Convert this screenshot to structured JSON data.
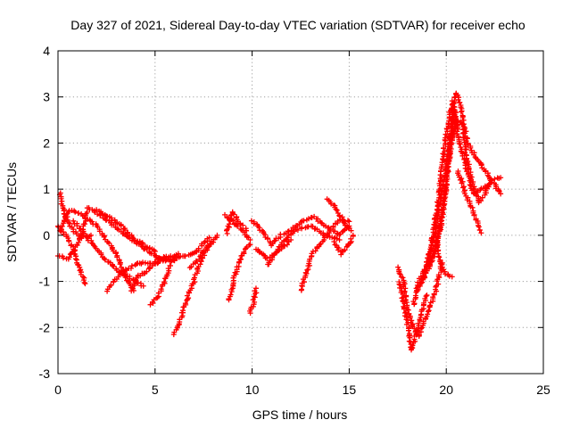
{
  "chart_data": {
    "type": "scatter",
    "title": "Day 327 of 2021, Sidereal Day-to-day VTEC variation (SDTVAR) for receiver echo",
    "xlabel": "GPS time / hours",
    "ylabel": "SDTVAR / TECUs",
    "xlim": [
      0,
      25
    ],
    "ylim": [
      -3,
      4
    ],
    "xticks": [
      "0",
      "5",
      "10",
      "15",
      "20",
      "25"
    ],
    "yticks": [
      "-3",
      "-2",
      "-1",
      "0",
      "1",
      "2",
      "3",
      "4"
    ],
    "grid": true,
    "marker": "plus",
    "marker_color": "#ff0000",
    "series_tracks": [
      {
        "name": "track-1",
        "points": [
          [
            0.0,
            0.2
          ],
          [
            0.4,
            0.0
          ],
          [
            0.8,
            -0.3
          ],
          [
            1.1,
            -0.7
          ],
          [
            1.4,
            -1.05
          ]
        ]
      },
      {
        "name": "track-2",
        "points": [
          [
            0.0,
            -0.45
          ],
          [
            0.5,
            -0.5
          ],
          [
            0.9,
            -0.3
          ],
          [
            1.3,
            0.1
          ],
          [
            1.5,
            0.5
          ]
        ]
      },
      {
        "name": "track-3",
        "points": [
          [
            0.1,
            0.9
          ],
          [
            0.4,
            0.4
          ],
          [
            0.8,
            0.1
          ],
          [
            1.2,
            -0.05
          ],
          [
            1.7,
            0.0
          ]
        ]
      },
      {
        "name": "track-4",
        "points": [
          [
            0.1,
            0.1
          ],
          [
            0.6,
            0.55
          ],
          [
            1.2,
            0.45
          ],
          [
            2.0,
            0.2
          ],
          [
            3.0,
            -0.4
          ],
          [
            3.6,
            -1.0
          ],
          [
            3.9,
            -1.2
          ]
        ]
      },
      {
        "name": "track-5",
        "points": [
          [
            1.5,
            0.6
          ],
          [
            2.3,
            0.4
          ],
          [
            3.5,
            0.0
          ],
          [
            4.5,
            -0.3
          ],
          [
            5.2,
            -0.5
          ],
          [
            6.0,
            -0.55
          ]
        ]
      },
      {
        "name": "track-6",
        "points": [
          [
            2.0,
            0.55
          ],
          [
            3.0,
            0.3
          ],
          [
            4.0,
            -0.1
          ],
          [
            5.0,
            -0.35
          ]
        ]
      },
      {
        "name": "track-7",
        "points": [
          [
            0.8,
            0.3
          ],
          [
            1.6,
            -0.1
          ],
          [
            2.4,
            -0.5
          ],
          [
            3.2,
            -0.8
          ],
          [
            4.0,
            -1.0
          ],
          [
            4.4,
            -1.1
          ]
        ]
      },
      {
        "name": "track-8",
        "points": [
          [
            2.5,
            -1.2
          ],
          [
            3.3,
            -0.8
          ],
          [
            4.2,
            -0.6
          ],
          [
            5.0,
            -0.6
          ],
          [
            6.0,
            -0.5
          ],
          [
            7.0,
            -0.4
          ],
          [
            7.8,
            -0.05
          ]
        ]
      },
      {
        "name": "track-9",
        "points": [
          [
            3.8,
            -1.2
          ],
          [
            4.1,
            -0.9
          ],
          [
            4.5,
            -0.8
          ],
          [
            5.2,
            -0.5
          ],
          [
            6.0,
            -0.45
          ]
        ]
      },
      {
        "name": "track-10",
        "points": [
          [
            4.8,
            -1.5
          ],
          [
            5.1,
            -1.35
          ],
          [
            5.5,
            -1.0
          ],
          [
            5.8,
            -0.6
          ],
          [
            6.2,
            -0.4
          ]
        ]
      },
      {
        "name": "track-11",
        "points": [
          [
            6.0,
            -2.15
          ],
          [
            6.4,
            -1.7
          ],
          [
            6.7,
            -1.3
          ],
          [
            7.0,
            -1.0
          ],
          [
            7.4,
            -0.5
          ],
          [
            7.8,
            -0.2
          ],
          [
            8.2,
            0.0
          ]
        ]
      },
      {
        "name": "track-12",
        "points": [
          [
            6.8,
            -0.7
          ],
          [
            7.2,
            -0.55
          ],
          [
            7.6,
            -0.3
          ],
          [
            8.0,
            -0.15
          ]
        ]
      },
      {
        "name": "track-13",
        "points": [
          [
            8.8,
            -1.4
          ],
          [
            9.1,
            -0.9
          ],
          [
            9.4,
            -0.5
          ],
          [
            9.7,
            -0.25
          ],
          [
            9.9,
            -0.2
          ]
        ]
      },
      {
        "name": "track-14",
        "points": [
          [
            8.6,
            0.45
          ],
          [
            9.0,
            0.3
          ],
          [
            9.5,
            0.1
          ],
          [
            9.9,
            -0.1
          ]
        ]
      },
      {
        "name": "track-15",
        "points": [
          [
            8.7,
            0.05
          ],
          [
            9.0,
            0.5
          ],
          [
            9.3,
            0.3
          ],
          [
            9.7,
            0.1
          ]
        ]
      },
      {
        "name": "track-16",
        "points": [
          [
            9.9,
            -1.7
          ],
          [
            10.1,
            -1.4
          ],
          [
            10.2,
            -1.15
          ]
        ]
      },
      {
        "name": "track-17",
        "points": [
          [
            10.0,
            0.3
          ],
          [
            10.5,
            0.1
          ],
          [
            11.0,
            -0.2
          ],
          [
            11.5,
            0.0
          ],
          [
            12.0,
            0.1
          ],
          [
            12.6,
            0.3
          ],
          [
            13.2,
            0.4
          ],
          [
            13.8,
            0.2
          ],
          [
            14.5,
            0.0
          ],
          [
            15.0,
            0.2
          ]
        ]
      },
      {
        "name": "track-18",
        "points": [
          [
            10.2,
            -0.3
          ],
          [
            10.8,
            -0.5
          ],
          [
            11.5,
            -0.3
          ],
          [
            12.0,
            -0.1
          ]
        ]
      },
      {
        "name": "track-19",
        "points": [
          [
            10.8,
            -0.65
          ],
          [
            11.5,
            -0.2
          ],
          [
            12.2,
            0.1
          ],
          [
            13.0,
            0.2
          ],
          [
            13.8,
            0.0
          ],
          [
            14.5,
            -0.1
          ]
        ]
      },
      {
        "name": "track-20",
        "points": [
          [
            12.5,
            -1.2
          ],
          [
            12.8,
            -0.8
          ],
          [
            13.1,
            -0.4
          ],
          [
            13.5,
            -0.2
          ],
          [
            14.0,
            0.1
          ],
          [
            14.5,
            0.35
          ],
          [
            15.0,
            0.3
          ]
        ]
      },
      {
        "name": "track-21",
        "points": [
          [
            13.9,
            0.8
          ],
          [
            14.3,
            0.6
          ],
          [
            14.7,
            0.3
          ],
          [
            15.1,
            0.1
          ]
        ]
      },
      {
        "name": "track-22",
        "points": [
          [
            14.2,
            -0.15
          ],
          [
            14.6,
            -0.4
          ],
          [
            15.0,
            -0.2
          ],
          [
            15.2,
            0.0
          ]
        ]
      },
      {
        "name": "track-23",
        "points": [
          [
            17.5,
            -0.7
          ],
          [
            17.8,
            -1.0
          ],
          [
            18.0,
            -1.6
          ],
          [
            18.3,
            -2.0
          ],
          [
            18.6,
            -2.2
          ],
          [
            19.0,
            -1.7
          ],
          [
            19.4,
            -1.3
          ],
          [
            19.8,
            -0.6
          ]
        ]
      },
      {
        "name": "track-24",
        "points": [
          [
            17.6,
            -1.0
          ],
          [
            17.8,
            -1.5
          ],
          [
            18.0,
            -1.9
          ],
          [
            18.2,
            -2.5
          ],
          [
            18.4,
            -2.2
          ],
          [
            18.7,
            -1.7
          ],
          [
            19.0,
            -1.3
          ]
        ]
      },
      {
        "name": "track-25",
        "points": [
          [
            18.3,
            -1.5
          ],
          [
            18.6,
            -1.0
          ],
          [
            19.0,
            -0.6
          ],
          [
            19.4,
            0.0
          ],
          [
            19.8,
            1.0
          ],
          [
            20.2,
            2.1
          ],
          [
            20.5,
            3.1
          ],
          [
            20.8,
            2.7
          ],
          [
            21.0,
            1.8
          ],
          [
            21.3,
            1.2
          ],
          [
            21.7,
            0.7
          ],
          [
            22.0,
            0.9
          ],
          [
            22.3,
            1.2
          ],
          [
            22.8,
            1.25
          ]
        ]
      },
      {
        "name": "track-26",
        "points": [
          [
            18.5,
            -1.2
          ],
          [
            19.0,
            -0.8
          ],
          [
            19.5,
            -0.3
          ],
          [
            19.8,
            0.4
          ],
          [
            20.1,
            1.5
          ],
          [
            20.4,
            2.7
          ],
          [
            20.7,
            2.0
          ],
          [
            21.0,
            1.5
          ],
          [
            21.4,
            0.9
          ],
          [
            21.8,
            1.0
          ],
          [
            22.2,
            1.1
          ]
        ]
      },
      {
        "name": "track-27",
        "points": [
          [
            19.0,
            -0.7
          ],
          [
            19.5,
            -0.2
          ],
          [
            19.9,
            0.8
          ],
          [
            20.2,
            1.8
          ],
          [
            20.5,
            2.5
          ],
          [
            20.9,
            2.4
          ],
          [
            21.1,
            2.0
          ],
          [
            21.5,
            1.7
          ],
          [
            22.0,
            1.4
          ],
          [
            22.5,
            1.1
          ],
          [
            22.8,
            0.9
          ]
        ]
      },
      {
        "name": "track-28",
        "points": [
          [
            18.8,
            -1.0
          ],
          [
            19.1,
            -0.5
          ],
          [
            19.4,
            0.2
          ],
          [
            19.7,
            1.2
          ],
          [
            20.0,
            2.2
          ],
          [
            20.3,
            2.9
          ],
          [
            20.6,
            2.4
          ]
        ]
      },
      {
        "name": "track-29",
        "points": [
          [
            19.4,
            0.2
          ],
          [
            19.6,
            -0.4
          ],
          [
            19.9,
            -0.8
          ],
          [
            20.3,
            -0.9
          ]
        ]
      },
      {
        "name": "track-30",
        "points": [
          [
            20.6,
            1.4
          ],
          [
            21.0,
            0.9
          ],
          [
            21.4,
            0.5
          ],
          [
            21.8,
            0.05
          ]
        ]
      }
    ]
  }
}
